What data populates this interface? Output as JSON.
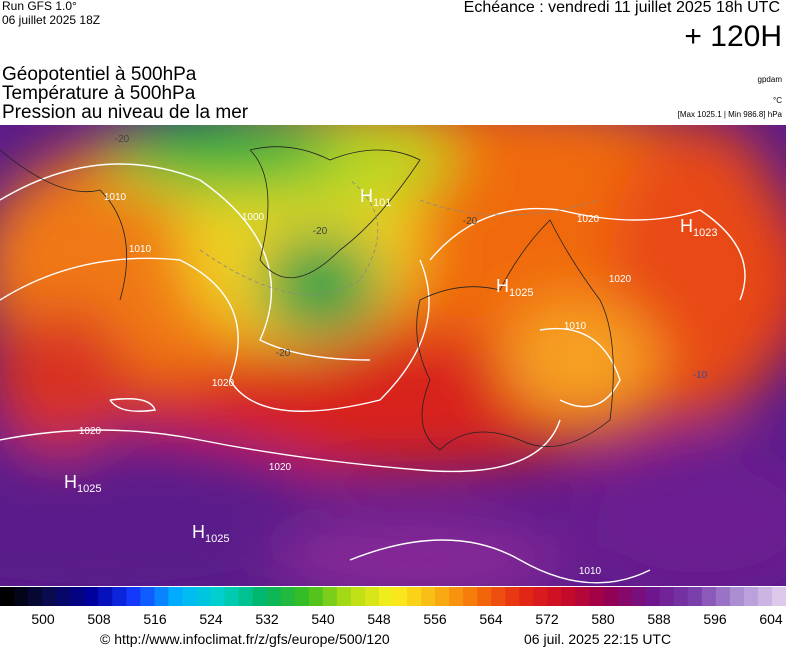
{
  "header": {
    "run": "Run GFS 1.0°",
    "run_date": "06 juillet 2025 18Z",
    "echeance": "Echéance : vendredi 11 juillet 2025 18h UTC",
    "lead": "+ 120H"
  },
  "titles": [
    "Géopotentiel à 500hPa",
    "Température à 500hPa",
    "Pression au niveau de la mer"
  ],
  "units": {
    "geopotential": "gpdam",
    "temperature": "°C",
    "pressure": "[Max 1025.1 | Min 986.8] hPa"
  },
  "pressure_centers": [
    {
      "letter": "H",
      "value": "1025"
    },
    {
      "letter": "H",
      "value": "1023"
    },
    {
      "letter": "H",
      "value": "1025"
    },
    {
      "letter": "H",
      "value": "1025"
    },
    {
      "letter": "H",
      "value": "101"
    }
  ],
  "contour_labels": [
    "1010",
    "1000",
    "1020",
    "1020",
    "1020",
    "1020",
    "1020",
    "1010",
    "1010",
    "1010",
    "-20",
    "-20",
    "-20",
    "-10",
    "-20"
  ],
  "colorbar_ticks": [
    500,
    508,
    516,
    524,
    532,
    540,
    548,
    556,
    564,
    572,
    580,
    588,
    596,
    604
  ],
  "footer": {
    "url": "© http://www.infoclimat.fr/z/gfs/europe/500/120",
    "generated": "06 juil. 2025 22:15 UTC"
  }
}
